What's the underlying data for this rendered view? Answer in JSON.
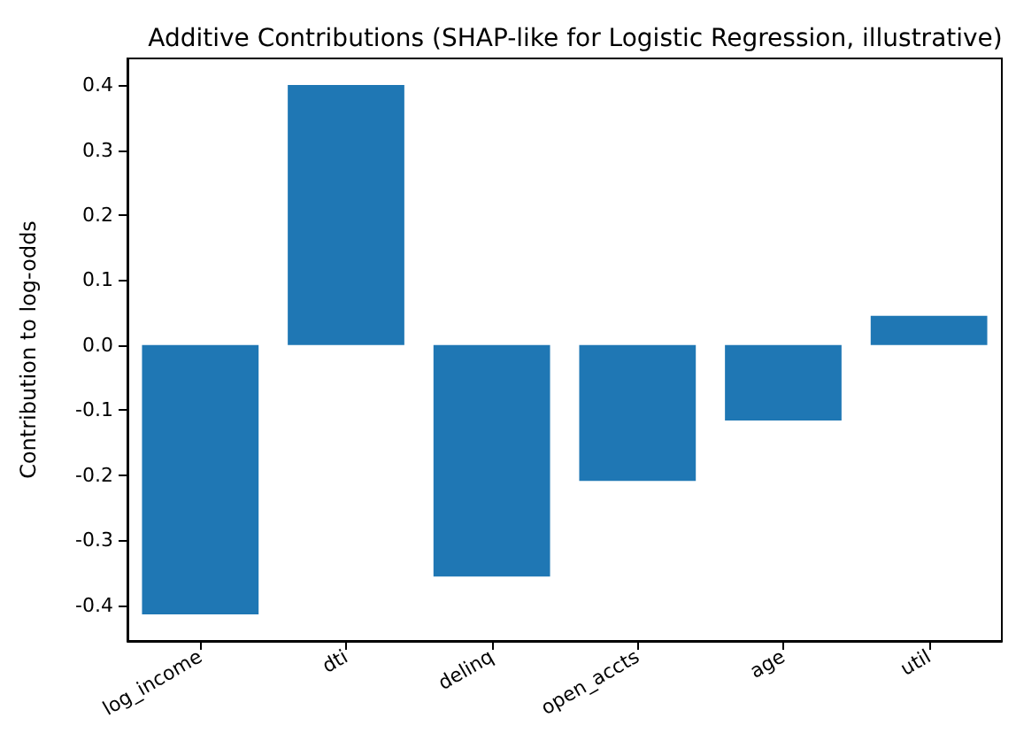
{
  "chart_data": {
    "type": "bar",
    "title": "Additive Contributions (SHAP-like for Logistic Regression, illustrative)",
    "ylabel": "Contribution to log-odds",
    "categories": [
      "log_income",
      "dti",
      "delinq",
      "open_accts",
      "age",
      "util"
    ],
    "values": [
      -0.414,
      0.4,
      -0.356,
      -0.209,
      -0.116,
      0.045
    ],
    "color": "#1f77b4",
    "ylim": [
      -0.455,
      0.441
    ],
    "yticks": [
      -0.4,
      -0.3,
      -0.2,
      -0.1,
      {
        "value": 0,
        "label": "0.0"
      },
      0.1,
      0.2,
      0.3,
      0.4
    ],
    "grid": false
  }
}
